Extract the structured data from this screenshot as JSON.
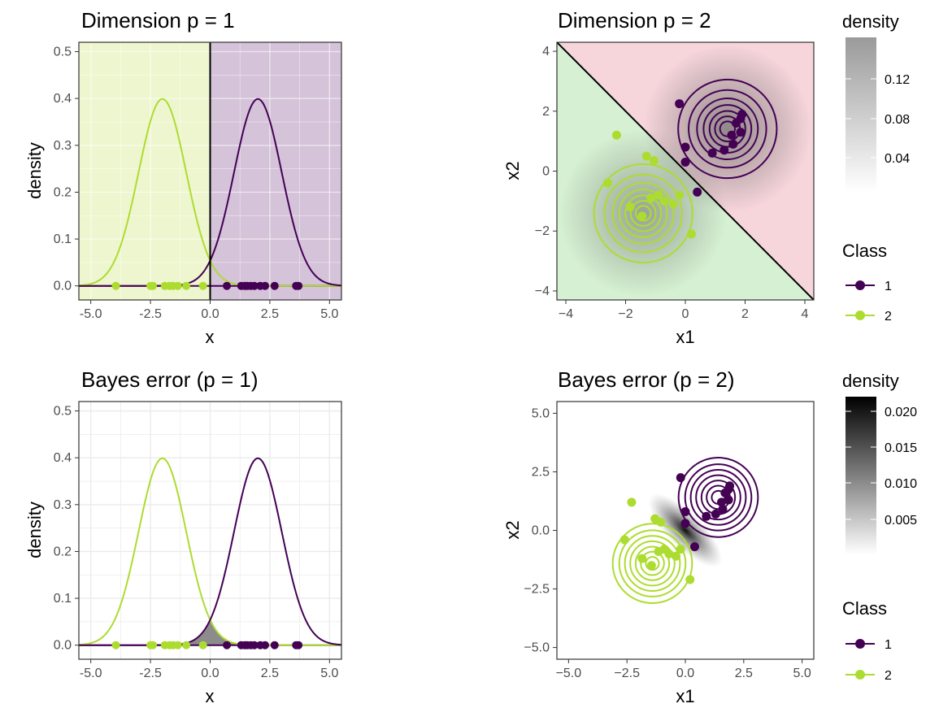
{
  "colors": {
    "class1": "#440154",
    "class2": "#addc30",
    "region1_p1": "#d4c3d9",
    "region2_p1": "#eef6cf",
    "region1_p2": "#f6d5db",
    "region2_p2": "#d5f0d2",
    "grid": "#ffffff",
    "grid_light": "#ebebeb"
  },
  "points": {
    "x_class1": [
      0.7,
      1.3,
      1.45,
      1.55,
      1.7,
      1.85,
      2.1,
      2.3,
      2.7,
      3.6,
      3.7
    ],
    "x_class2": [
      -3.95,
      -2.5,
      -2.4,
      -1.9,
      -1.7,
      -1.55,
      -1.35,
      -1.0,
      -0.3
    ],
    "xy_class1": [
      [
        -0.2,
        2.25
      ],
      [
        0.0,
        0.8
      ],
      [
        0.0,
        0.3
      ],
      [
        0.4,
        -0.7
      ],
      [
        0.9,
        0.6
      ],
      [
        1.3,
        0.7
      ],
      [
        1.6,
        0.9
      ],
      [
        1.7,
        1.6
      ],
      [
        1.85,
        1.75
      ],
      [
        1.85,
        1.3
      ],
      [
        1.9,
        1.9
      ],
      [
        1.55,
        1.2
      ]
    ],
    "xy_class2": [
      [
        -2.3,
        1.2
      ],
      [
        -1.3,
        0.5
      ],
      [
        -1.05,
        0.35
      ],
      [
        -0.9,
        -0.8
      ],
      [
        -0.7,
        -1.0
      ],
      [
        -0.4,
        -1.1
      ],
      [
        -0.2,
        -0.8
      ],
      [
        0.2,
        -2.1
      ],
      [
        -2.6,
        -0.4
      ],
      [
        -1.85,
        -1.2
      ],
      [
        -1.45,
        -1.5
      ],
      [
        -1.15,
        -0.9
      ]
    ]
  },
  "chart_data": [
    {
      "type": "line",
      "title": "Dimension p = 1",
      "xlabel": "x",
      "ylabel": "density",
      "xlim": [
        -5.5,
        5.5
      ],
      "ylim": [
        -0.03,
        0.52
      ],
      "x_ticks": [
        "-5.0",
        "-2.5",
        "0.0",
        "2.5",
        "5.0"
      ],
      "y_ticks": [
        "0.0",
        "0.1",
        "0.2",
        "0.3",
        "0.4",
        "0.5"
      ],
      "series": [
        {
          "name": "1",
          "kind": "normal density",
          "mean": 2,
          "sd": 1
        },
        {
          "name": "2",
          "kind": "normal density",
          "mean": -2,
          "sd": 1
        }
      ],
      "decision_boundary": 0,
      "grid": true
    },
    {
      "type": "scatter",
      "title": "Dimension p = 2",
      "xlabel": "x1",
      "ylabel": "x2",
      "xlim": [
        -4.3,
        4.3
      ],
      "ylim": [
        -4.3,
        4.3
      ],
      "x_ticks": [
        "−4",
        "−2",
        "0",
        "2",
        "4"
      ],
      "y_ticks": [
        "−4",
        "−2",
        "0",
        "2",
        "4"
      ],
      "contour_centers": {
        "class1": [
          1.41,
          1.41
        ],
        "class2": [
          -1.41,
          -1.41
        ]
      },
      "decision_boundary": "x1 + x2 = 0",
      "legend": {
        "title": "Class",
        "entries": [
          "1",
          "2"
        ],
        "position": "right"
      },
      "colorbar": {
        "title": "density",
        "labels": [
          "0.12",
          "0.08",
          "0.04"
        ]
      }
    },
    {
      "type": "line",
      "title": "Bayes error (p = 1)",
      "xlabel": "x",
      "ylabel": "density",
      "xlim": [
        -5.5,
        5.5
      ],
      "ylim": [
        -0.03,
        0.52
      ],
      "x_ticks": [
        "-5.0",
        "-2.5",
        "0.0",
        "2.5",
        "5.0"
      ],
      "y_ticks": [
        "0.0",
        "0.1",
        "0.2",
        "0.3",
        "0.4",
        "0.5"
      ],
      "series": [
        {
          "name": "1",
          "kind": "normal density",
          "mean": 2,
          "sd": 1
        },
        {
          "name": "2",
          "kind": "normal density",
          "mean": -2,
          "sd": 1
        }
      ],
      "shaded": "overlap area (Bayes error)",
      "grid": true
    },
    {
      "type": "scatter",
      "title": "Bayes error (p = 2)",
      "xlabel": "x1",
      "ylabel": "x2",
      "xlim": [
        -5.5,
        5.5
      ],
      "ylim": [
        -5.5,
        5.5
      ],
      "x_ticks": [
        "−5.0",
        "−2.5",
        "0.0",
        "2.5",
        "5.0"
      ],
      "y_ticks": [
        "−5.0",
        "−2.5",
        "0.0",
        "2.5",
        "5.0"
      ],
      "contour_centers": {
        "class1": [
          1.41,
          1.41
        ],
        "class2": [
          -1.41,
          -1.41
        ]
      },
      "legend": {
        "title": "Class",
        "entries": [
          "1",
          "2"
        ],
        "position": "right"
      },
      "colorbar": {
        "title": "density",
        "labels": [
          "0.020",
          "0.015",
          "0.010",
          "0.005"
        ]
      }
    }
  ]
}
